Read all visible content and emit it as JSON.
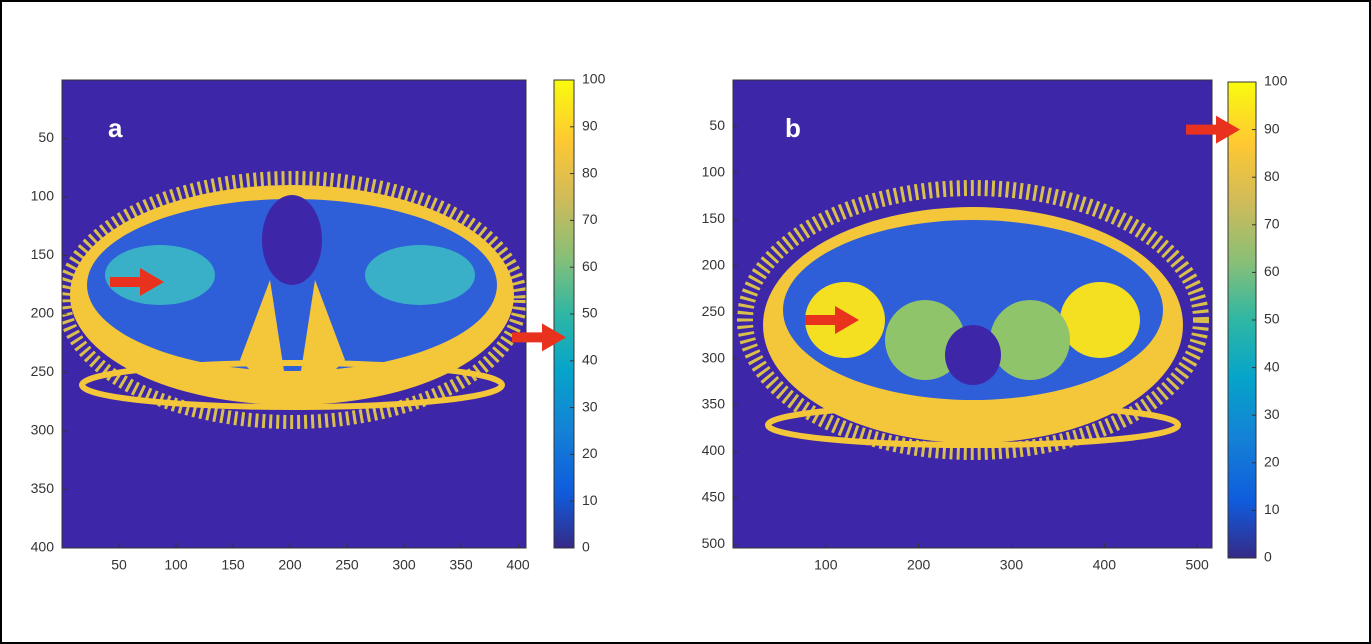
{
  "chart_data": [
    {
      "type": "image",
      "label": "a",
      "xlim": [
        0,
        407
      ],
      "ylim": [
        0,
        400
      ],
      "xticks": [
        50,
        100,
        150,
        200,
        250,
        300,
        350,
        400
      ],
      "yticks": [
        50,
        100,
        150,
        200,
        250,
        300,
        350,
        400
      ],
      "colorbar_lim": [
        0,
        100
      ],
      "colorbar_ticks": [
        0,
        10,
        20,
        30,
        40,
        50,
        60,
        70,
        80,
        90,
        100
      ],
      "arrow_value": 45,
      "arrow_color": "#e8321e"
    },
    {
      "type": "image",
      "label": "b",
      "xlim": [
        0,
        516
      ],
      "ylim": [
        0,
        504
      ],
      "xticks": [
        100,
        200,
        300,
        400,
        500
      ],
      "yticks": [
        50,
        100,
        150,
        200,
        250,
        300,
        350,
        400,
        450,
        500
      ],
      "colorbar_lim": [
        0,
        100
      ],
      "colorbar_ticks": [
        0,
        10,
        20,
        30,
        40,
        50,
        60,
        70,
        80,
        90,
        100
      ],
      "arrow_value": 90,
      "arrow_color": "#e8321e"
    }
  ]
}
